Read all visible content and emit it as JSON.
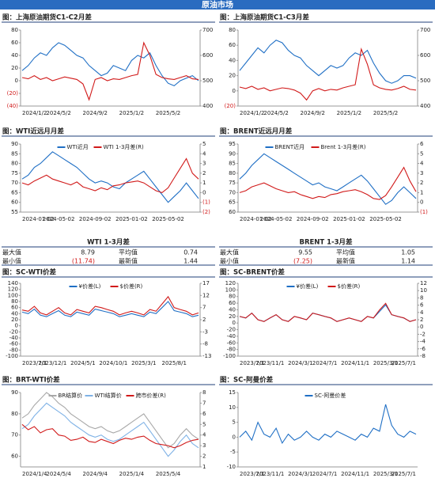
{
  "header": {
    "title": "原油市场"
  },
  "chart_data": [
    {
      "type": "line",
      "title": "图：上海原油期货C1-C2月差",
      "categories": [
        "2024/1/2",
        null,
        null,
        null,
        null,
        null,
        "2024/5/2",
        null,
        null,
        null,
        null,
        null,
        "2024/9/2",
        null,
        null,
        null,
        null,
        null,
        "2025/1/2",
        null,
        null,
        null,
        null,
        null,
        "2025/5/2",
        null,
        null,
        null,
        null,
        null
      ],
      "series": [
        {
          "color": "#1f6fc5",
          "axis": "y2",
          "values": [
            540,
            560,
            590,
            610,
            600,
            630,
            650,
            640,
            620,
            600,
            590,
            560,
            540,
            520,
            530,
            560,
            550,
            540,
            580,
            600,
            590,
            610,
            560,
            520,
            490,
            480,
            500,
            510,
            520,
            500
          ]
        },
        {
          "color": "#d11a1a",
          "axis": "y",
          "values": [
            5,
            3,
            8,
            2,
            5,
            0,
            3,
            6,
            4,
            2,
            -5,
            -30,
            2,
            5,
            0,
            3,
            2,
            5,
            8,
            10,
            60,
            40,
            10,
            5,
            3,
            2,
            5,
            8,
            3,
            2
          ]
        }
      ],
      "ylim": [
        -40,
        80
      ],
      "yticks": [
        {
          "value": -40,
          "label": "(40)"
        },
        {
          "value": -20,
          "label": "(20)"
        },
        0,
        20,
        40,
        60,
        80
      ],
      "y2lim": [
        400,
        700
      ],
      "y2ticks": [
        400,
        500,
        600,
        700
      ]
    },
    {
      "type": "line",
      "title": "图：上海原油期货C1-C3月差",
      "categories": [
        "2024/1/2",
        null,
        null,
        null,
        null,
        null,
        "2024/5/2",
        null,
        null,
        null,
        null,
        null,
        "2024/9/2",
        null,
        null,
        null,
        null,
        null,
        "2025/1/2",
        null,
        null,
        null,
        null,
        null,
        "2025/5/2",
        null,
        null,
        null,
        null,
        null
      ],
      "series": [
        {
          "color": "#1f6fc5",
          "axis": "y2",
          "values": [
            540,
            570,
            600,
            630,
            610,
            640,
            660,
            650,
            620,
            600,
            590,
            560,
            540,
            520,
            540,
            560,
            550,
            560,
            590,
            610,
            600,
            620,
            570,
            530,
            500,
            490,
            500,
            520,
            520,
            510
          ]
        },
        {
          "color": "#d11a1a",
          "axis": "y",
          "values": [
            5,
            3,
            6,
            2,
            4,
            0,
            2,
            4,
            3,
            1,
            -3,
            -12,
            0,
            3,
            0,
            2,
            1,
            4,
            6,
            8,
            55,
            35,
            8,
            4,
            2,
            1,
            3,
            6,
            2,
            1
          ]
        }
      ],
      "ylim": [
        -20,
        80
      ],
      "yticks": [
        {
          "value": -20,
          "label": "(20)"
        },
        0,
        20,
        40,
        60,
        80
      ],
      "y2lim": [
        400,
        700
      ],
      "y2ticks": [
        400,
        500,
        600,
        700
      ]
    },
    {
      "type": "line",
      "title": "图：WTI近远月月差",
      "categories": [
        "2024-01-02",
        null,
        null,
        null,
        null,
        null,
        "2024-05-02",
        null,
        null,
        null,
        null,
        null,
        "2024-09-02",
        null,
        null,
        null,
        null,
        null,
        "2025-01-02",
        null,
        null,
        null,
        null,
        null,
        "2025-05-02",
        null,
        null,
        null,
        null,
        null
      ],
      "series": [
        {
          "name": "WTI近月",
          "color": "#1f6fc5",
          "axis": "y",
          "values": [
            72,
            74,
            78,
            80,
            83,
            86,
            84,
            82,
            80,
            78,
            75,
            72,
            70,
            71,
            70,
            68,
            67,
            70,
            72,
            74,
            76,
            72,
            68,
            64,
            60,
            63,
            66,
            70,
            66,
            62
          ]
        },
        {
          "name": "WTI 1-3月差(R)",
          "color": "#d11a1a",
          "axis": "y2",
          "values": [
            1.0,
            0.8,
            1.2,
            1.5,
            1.8,
            1.4,
            1.2,
            1.0,
            0.8,
            1.1,
            0.6,
            0.4,
            0.2,
            0.5,
            0.3,
            0.7,
            0.8,
            1.0,
            1.1,
            1.2,
            1.0,
            0.6,
            0.2,
            0.0,
            0.5,
            1.5,
            2.5,
            3.5,
            2.0,
            1.4
          ]
        }
      ],
      "ylim": [
        55,
        90
      ],
      "yticks": [
        55,
        60,
        65,
        70,
        75,
        80,
        85,
        90
      ],
      "y2lim": [
        -2,
        5
      ],
      "y2ticks": [
        {
          "value": -2,
          "label": "(2)"
        },
        {
          "value": -1,
          "label": "(1)"
        },
        0,
        1,
        2,
        3,
        4,
        5
      ]
    },
    {
      "type": "line",
      "title": "图：BRENT近远月月差",
      "categories": [
        "2024-01-02",
        null,
        null,
        null,
        null,
        null,
        "2024-05-02",
        null,
        null,
        null,
        null,
        null,
        "2024-09-02",
        null,
        null,
        null,
        null,
        null,
        "2025-01-02",
        null,
        null,
        null,
        null,
        null,
        "2025-05-02",
        null,
        null,
        null,
        null,
        null
      ],
      "series": [
        {
          "name": "BRENT近月",
          "color": "#1f6fc5",
          "axis": "y",
          "values": [
            77,
            80,
            84,
            87,
            90,
            88,
            86,
            84,
            82,
            80,
            78,
            76,
            74,
            75,
            73,
            72,
            71,
            73,
            75,
            77,
            79,
            76,
            72,
            68,
            64,
            66,
            70,
            73,
            70,
            67
          ]
        },
        {
          "name": "Brent 1-3月差(R)",
          "color": "#d11a1a",
          "axis": "y2",
          "values": [
            1.0,
            1.2,
            1.6,
            1.8,
            2.0,
            1.7,
            1.4,
            1.2,
            1.0,
            1.1,
            0.8,
            0.6,
            0.4,
            0.6,
            0.5,
            0.8,
            0.9,
            1.1,
            1.2,
            1.3,
            1.1,
            0.8,
            0.4,
            0.3,
            0.7,
            1.6,
            2.6,
            3.6,
            2.2,
            1.1
          ]
        }
      ],
      "ylim": [
        60,
        95
      ],
      "yticks": [
        60,
        65,
        70,
        75,
        80,
        85,
        90,
        95
      ],
      "y2lim": [
        -1,
        6
      ],
      "y2ticks": [
        {
          "value": -1,
          "label": "(1)"
        },
        0,
        1,
        2,
        3,
        4,
        5,
        6
      ]
    },
    {
      "type": "line",
      "title": "图：SC-WTI价差",
      "categories": [
        "2023/7/1",
        null,
        null,
        null,
        null,
        "2023/12/1",
        null,
        null,
        null,
        null,
        "2024/5/1",
        null,
        null,
        null,
        null,
        "2024/10/1",
        null,
        null,
        null,
        null,
        "2025/3/1",
        null,
        null,
        null,
        null,
        "2025/8/1",
        null,
        null,
        null,
        null
      ],
      "series": [
        {
          "name": "¥价差(L)",
          "color": "#1f6fc5",
          "axis": "y",
          "values": [
            45,
            40,
            55,
            35,
            30,
            40,
            50,
            35,
            30,
            45,
            40,
            35,
            55,
            50,
            45,
            40,
            30,
            35,
            40,
            35,
            30,
            45,
            40,
            60,
            80,
            50,
            45,
            40,
            30,
            35
          ]
        },
        {
          "name": "$价差(R)",
          "color": "#d11a1a",
          "axis": "y2",
          "values": [
            6,
            5.5,
            7.5,
            4.8,
            4,
            5.5,
            7,
            4.8,
            4,
            6.2,
            5.5,
            4.8,
            7.5,
            7,
            6.2,
            5.5,
            4,
            4.8,
            5.5,
            4.8,
            4,
            6.2,
            5.5,
            8.5,
            11.5,
            7,
            6.2,
            5.5,
            4,
            4.8
          ]
        }
      ],
      "ylim": [
        -100,
        140
      ],
      "yticks": [
        -100,
        -80,
        -60,
        -40,
        -20,
        0,
        20,
        40,
        60,
        80,
        100,
        120,
        140
      ],
      "y2lim": [
        -13,
        17
      ],
      "y2ticks": [
        -13,
        -8,
        -3,
        2,
        7,
        12,
        17
      ]
    },
    {
      "type": "line",
      "title": "图：SC-BRENT价差",
      "categories": [
        "2023/7/1",
        null,
        null,
        null,
        null,
        "2023/11/1",
        null,
        null,
        null,
        null,
        "2024/3/1",
        null,
        null,
        null,
        "2024/7/1",
        null,
        null,
        null,
        null,
        "2024/11/1",
        null,
        null,
        null,
        null,
        "2025/3/1",
        null,
        null,
        null,
        null,
        "2025/7/1"
      ],
      "series": [
        {
          "name": "¥价差(L)",
          "color": "#1f6fc5",
          "axis": "y",
          "values": [
            20,
            15,
            30,
            10,
            5,
            15,
            25,
            10,
            5,
            20,
            15,
            10,
            30,
            25,
            20,
            15,
            5,
            10,
            15,
            10,
            5,
            20,
            15,
            35,
            55,
            25,
            20,
            15,
            5,
            10
          ]
        },
        {
          "name": "$价差(R)",
          "color": "#d11a1a",
          "axis": "y2",
          "values": [
            2.9,
            2.5,
            3.8,
            2.0,
            1.5,
            2.5,
            3.4,
            2.0,
            1.5,
            2.9,
            2.5,
            2.0,
            3.8,
            3.4,
            2.9,
            2.5,
            1.5,
            2.0,
            2.5,
            2.0,
            1.5,
            2.9,
            2.5,
            4.7,
            6.5,
            3.4,
            2.9,
            2.5,
            1.5,
            2.0
          ]
        }
      ],
      "ylim": [
        -100,
        120
      ],
      "yticks": [
        -100,
        -80,
        -60,
        -40,
        -20,
        0,
        20,
        40,
        60,
        80,
        100,
        120
      ],
      "y2lim": [
        -8,
        12
      ],
      "y2ticks": [
        -8,
        -6,
        -4,
        -2,
        0,
        2,
        4,
        6,
        8,
        10,
        12
      ]
    },
    {
      "type": "line",
      "title": "图：BRT-WTI价差",
      "categories": [
        "2024/1/4",
        null,
        null,
        null,
        null,
        null,
        "2024/5/4",
        null,
        null,
        null,
        null,
        null,
        "2024/9/4",
        null,
        null,
        null,
        null,
        null,
        "2025/1/4",
        null,
        null,
        null,
        null,
        null,
        "2025/5/4",
        null,
        null,
        null,
        null,
        null
      ],
      "series": [
        {
          "name": "BR结算价",
          "color": "#a8a8a8",
          "axis": "y",
          "values": [
            78,
            80,
            84,
            87,
            90,
            88,
            85,
            83,
            80,
            78,
            76,
            74,
            73,
            74,
            72,
            71,
            72,
            74,
            76,
            78,
            80,
            76,
            72,
            68,
            64,
            66,
            70,
            73,
            70,
            68
          ]
        },
        {
          "name": "WTI结算价",
          "color": "#7fb2e6",
          "axis": "y",
          "values": [
            73,
            75,
            79,
            82,
            85,
            83,
            81,
            79,
            76,
            74,
            72,
            70,
            69,
            70,
            68,
            67,
            68,
            70,
            72,
            74,
            76,
            72,
            68,
            64,
            60,
            63,
            67,
            70,
            66,
            64
          ]
        },
        {
          "name": "跨市价差(R)",
          "color": "#d11a1a",
          "axis": "y2",
          "values": [
            5,
            4.5,
            4.8,
            4.2,
            4.5,
            4.6,
            4,
            3.9,
            3.5,
            3.6,
            3.8,
            3.4,
            3.3,
            3.6,
            3.4,
            3.2,
            3.5,
            3.7,
            3.6,
            3.8,
            3.9,
            3.5,
            3.2,
            3.1,
            3.0,
            2.8,
            3.0,
            3.3,
            3.5,
            3.6
          ]
        }
      ],
      "ylim": [
        55,
        90
      ],
      "yticks": [
        60,
        70,
        80,
        90
      ],
      "y2lim": [
        1,
        8
      ],
      "y2ticks": [
        1,
        2,
        3,
        4,
        5,
        6,
        7,
        8
      ]
    },
    {
      "type": "line",
      "title": "图：SC-阿曼价差",
      "categories": [
        "2023/7/1",
        null,
        null,
        null,
        null,
        "2023/11/1",
        null,
        null,
        null,
        null,
        "2024/3/1",
        null,
        null,
        null,
        "2024/7/1",
        null,
        null,
        null,
        null,
        "2024/11/1",
        null,
        null,
        null,
        null,
        "2025/3/1",
        null,
        null,
        null,
        null,
        "2025/7/1"
      ],
      "series": [
        {
          "name": "SC-阿曼价差",
          "color": "#1f6fc5",
          "axis": "y",
          "values": [
            0,
            2,
            -1,
            5,
            1,
            0,
            3,
            -2,
            1,
            -1,
            0,
            2,
            0,
            -1,
            1,
            0,
            2,
            1,
            0,
            -1,
            1,
            0,
            3,
            2,
            11,
            4,
            1,
            0,
            2,
            1
          ]
        }
      ],
      "ylim": [
        -10,
        15
      ],
      "yticks": [
        -10,
        -5,
        0,
        5,
        10,
        15
      ]
    }
  ],
  "tables": [
    {
      "title": "WTI 1-3月差",
      "rows": [
        [
          "最大值",
          "8.79",
          "平均值",
          "0.74"
        ],
        [
          "最小值",
          "(11.74)",
          "最新值",
          "1.44"
        ]
      ]
    },
    {
      "title": "BRENT 1-3月差",
      "rows": [
        [
          "最大值",
          "9.55",
          "平均值",
          "1.05"
        ],
        [
          "最小值",
          "(7.25)",
          "最新值",
          "1.14"
        ]
      ]
    }
  ]
}
